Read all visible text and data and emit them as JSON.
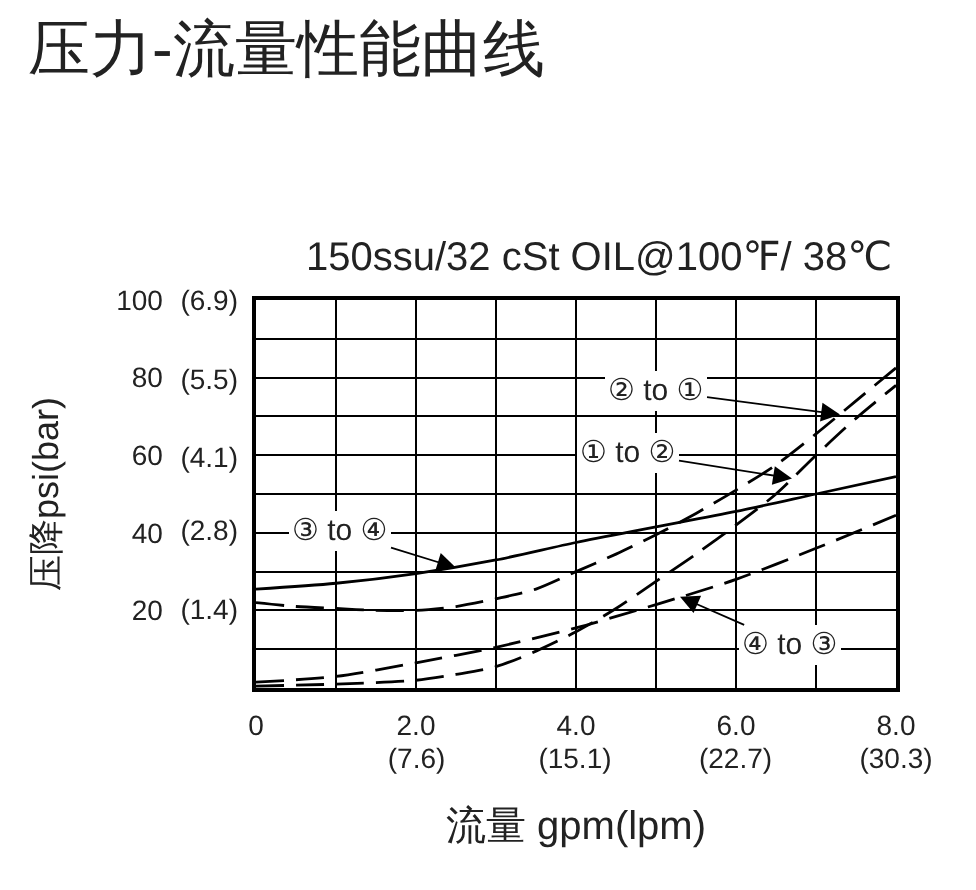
{
  "chart_data": {
    "type": "line",
    "title": "压力-流量性能曲线",
    "subtitle": "150ssu/32 cSt OIL@100℉/ 38℃",
    "xlabel": "流量 gpm(lpm)",
    "ylabel": "压降psi(bar)",
    "xlim": [
      0,
      8
    ],
    "ylim": [
      0,
      100
    ],
    "xticks": [
      0,
      {
        "value": 1,
        "label": null
      },
      {
        "value": 2,
        "label": "2.0"
      },
      {
        "value": 3,
        "label": null
      },
      {
        "value": 4,
        "label": "4.0"
      },
      {
        "value": 5,
        "label": null
      },
      {
        "value": 6,
        "label": "6.0"
      },
      {
        "value": 7,
        "label": null
      },
      {
        "value": 8,
        "label": "8.0"
      }
    ],
    "x2lim": [
      0,
      30.3
    ],
    "x2ticks": [
      {
        "value": 7.6,
        "label": "(7.6)"
      },
      {
        "value": 15.1,
        "label": "(15.1)"
      },
      {
        "value": 22.7,
        "label": "(22.7)"
      },
      {
        "value": 30.3,
        "label": "(30.3)"
      }
    ],
    "yticks": [
      {
        "value": 0,
        "label": null
      },
      {
        "value": 10,
        "label": null
      },
      20,
      {
        "value": 30,
        "label": null
      },
      40,
      {
        "value": 50,
        "label": null
      },
      60,
      {
        "value": 70,
        "label": null
      },
      80,
      {
        "value": 90,
        "label": null
      },
      100
    ],
    "y2lim": [
      0,
      6.9
    ],
    "y2ticks": [
      {
        "value": 1.4,
        "label": "(1.4)"
      },
      {
        "value": 2.8,
        "label": "(2.8)"
      },
      {
        "value": 4.1,
        "label": "(4.1)"
      },
      {
        "value": 5.5,
        "label": "(5.5)"
      },
      {
        "value": 6.9,
        "label": "(6.9)"
      }
    ],
    "grid": true,
    "marker": "none",
    "series": [
      {
        "color": "#000000",
        "line_style": "solid",
        "x": [
          0,
          1,
          2,
          3,
          4,
          5,
          6,
          7,
          8
        ],
        "values": [
          25.5,
          27,
          29.5,
          33,
          37.5,
          41.5,
          45.5,
          50,
          54.5
        ]
      },
      {
        "color": "#000000",
        "line_style": "dashed",
        "x": [
          0,
          0.5,
          1,
          1.5,
          2,
          2.5,
          3,
          3.5,
          4,
          4.5,
          5,
          5.5,
          6,
          6.5,
          7,
          7.5,
          8
        ],
        "values": [
          22,
          21,
          20.5,
          20,
          20,
          21,
          23,
          25.5,
          30,
          34.5,
          39.5,
          45,
          51,
          57.5,
          65.5,
          74,
          82.5
        ]
      },
      {
        "color": "#000000",
        "line_style": "dashed",
        "x": [
          0,
          1,
          2,
          2.5,
          3,
          3.5,
          4,
          4.5,
          5,
          5.5,
          6,
          6.5,
          7,
          7.5,
          8
        ],
        "values": [
          0.5,
          1,
          2,
          3.5,
          5.5,
          9.5,
          14.5,
          20.5,
          27.5,
          34.5,
          42,
          50,
          60,
          69.5,
          78
        ]
      },
      {
        "color": "#000000",
        "line_style": "dashed",
        "x": [
          0,
          1,
          2,
          3,
          4,
          5,
          6,
          7,
          8
        ],
        "values": [
          1.5,
          3,
          6.5,
          10.5,
          15.5,
          21.5,
          28,
          36,
          44.5
        ]
      }
    ],
    "annotations": [
      {
        "text": "② to ①",
        "x": 7.3,
        "y": 70.5
      },
      {
        "text": "① to ②",
        "x": 6.7,
        "y": 54
      },
      {
        "text": "③ to ④",
        "x": 2.5,
        "y": 31
      },
      {
        "text": "④ to ③",
        "x": 5.3,
        "y": 23.5
      }
    ]
  }
}
